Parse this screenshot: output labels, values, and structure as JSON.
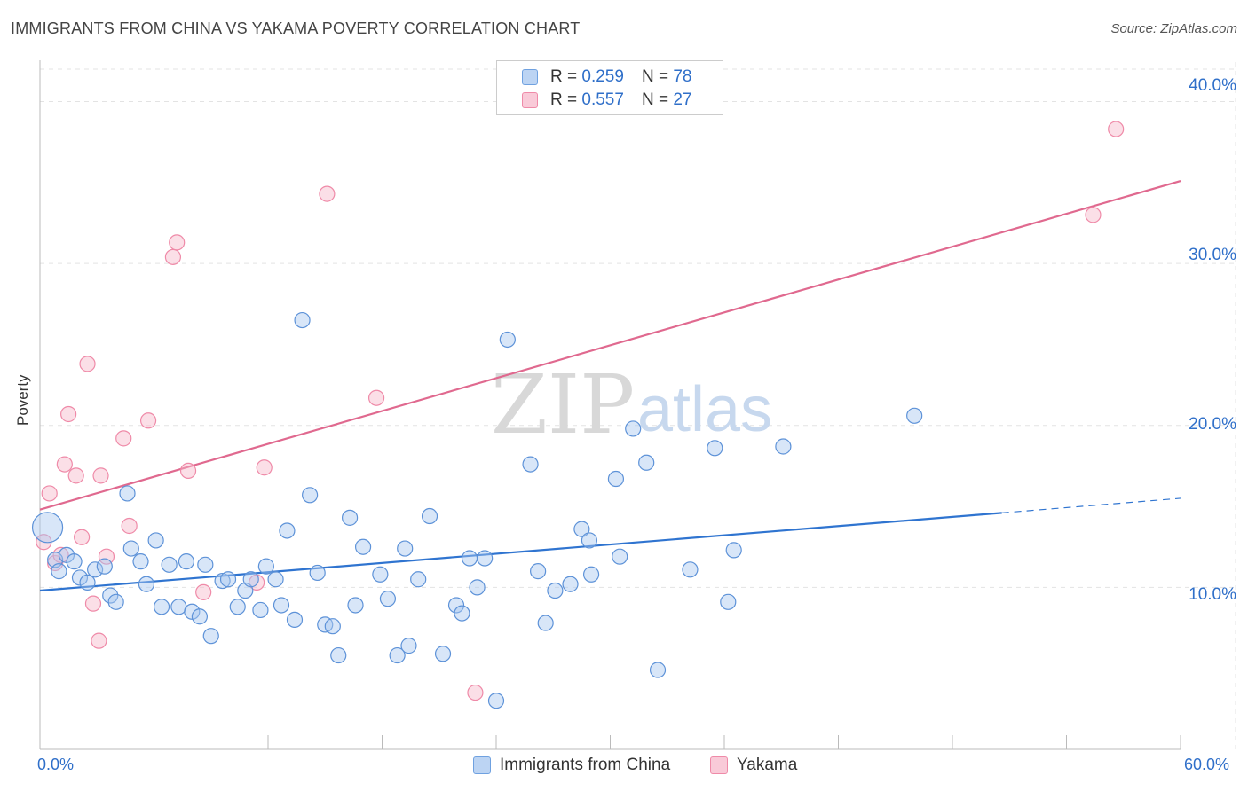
{
  "title": "IMMIGRANTS FROM CHINA VS YAKAMA POVERTY CORRELATION CHART",
  "source": "Source: ZipAtlas.com",
  "watermark": {
    "zip": "ZIP",
    "atlas": "atlas"
  },
  "legend_top": [
    {
      "r_label": "R =",
      "r_value": "0.259",
      "n_label": "N =",
      "n_value": "78"
    },
    {
      "r_label": "R =",
      "r_value": "0.557",
      "n_label": "N =",
      "n_value": "27"
    }
  ],
  "chart_data": {
    "type": "scatter",
    "title": "IMMIGRANTS FROM CHINA VS YAKAMA POVERTY CORRELATION CHART",
    "xlabel": "",
    "ylabel": "Poverty",
    "xlim": [
      0,
      60
    ],
    "ylim": [
      0,
      42
    ],
    "x_tick_labels": {
      "min": "0.0%",
      "max": "60.0%"
    },
    "y_ticks": [
      10,
      20,
      30,
      40
    ],
    "y_tick_labels": [
      "10.0%",
      "20.0%",
      "30.0%",
      "40.0%"
    ],
    "grid": true,
    "colors": {
      "china": "#6fa1e0",
      "yakama": "#ef8aa8",
      "china_line": "#2f74d0",
      "yakama_line": "#e0698f",
      "axis_text": "#2f6fc9"
    },
    "series": [
      {
        "name": "Immigrants from China",
        "r": 0.259,
        "n": 78,
        "trend": {
          "x0": 0,
          "y0": 9.8,
          "x1": 50.6,
          "y1": 14.6,
          "dash_to_x": 60,
          "dash_to_y": 15.5
        },
        "points": [
          {
            "x": 0.4,
            "y": 13.7,
            "big": true
          },
          {
            "x": 0.8,
            "y": 11.7
          },
          {
            "x": 1.0,
            "y": 11.0
          },
          {
            "x": 1.4,
            "y": 12.0
          },
          {
            "x": 1.8,
            "y": 11.6
          },
          {
            "x": 2.1,
            "y": 10.6
          },
          {
            "x": 2.5,
            "y": 10.3
          },
          {
            "x": 2.9,
            "y": 11.1
          },
          {
            "x": 3.4,
            "y": 11.3
          },
          {
            "x": 3.7,
            "y": 9.5
          },
          {
            "x": 4.0,
            "y": 9.1
          },
          {
            "x": 4.6,
            "y": 15.8
          },
          {
            "x": 4.8,
            "y": 12.4
          },
          {
            "x": 5.3,
            "y": 11.6
          },
          {
            "x": 5.6,
            "y": 10.2
          },
          {
            "x": 6.1,
            "y": 12.9
          },
          {
            "x": 6.4,
            "y": 8.8
          },
          {
            "x": 6.8,
            "y": 11.4
          },
          {
            "x": 7.3,
            "y": 8.8
          },
          {
            "x": 7.7,
            "y": 11.6
          },
          {
            "x": 8.0,
            "y": 8.5
          },
          {
            "x": 8.4,
            "y": 8.2
          },
          {
            "x": 8.7,
            "y": 11.4
          },
          {
            "x": 9.0,
            "y": 7.0
          },
          {
            "x": 9.6,
            "y": 10.4
          },
          {
            "x": 9.9,
            "y": 10.5
          },
          {
            "x": 10.4,
            "y": 8.8
          },
          {
            "x": 10.8,
            "y": 9.8
          },
          {
            "x": 11.1,
            "y": 10.5
          },
          {
            "x": 11.6,
            "y": 8.6
          },
          {
            "x": 11.9,
            "y": 11.3
          },
          {
            "x": 12.4,
            "y": 10.5
          },
          {
            "x": 12.7,
            "y": 8.9
          },
          {
            "x": 13.0,
            "y": 13.5
          },
          {
            "x": 13.4,
            "y": 8.0
          },
          {
            "x": 13.8,
            "y": 26.5
          },
          {
            "x": 14.2,
            "y": 15.7
          },
          {
            "x": 14.6,
            "y": 10.9
          },
          {
            "x": 15.0,
            "y": 7.7
          },
          {
            "x": 15.4,
            "y": 7.6
          },
          {
            "x": 15.7,
            "y": 5.8
          },
          {
            "x": 16.3,
            "y": 14.3
          },
          {
            "x": 16.6,
            "y": 8.9
          },
          {
            "x": 17.0,
            "y": 12.5
          },
          {
            "x": 17.9,
            "y": 10.8
          },
          {
            "x": 18.3,
            "y": 9.3
          },
          {
            "x": 18.8,
            "y": 5.8
          },
          {
            "x": 19.2,
            "y": 12.4
          },
          {
            "x": 19.4,
            "y": 6.4
          },
          {
            "x": 19.9,
            "y": 10.5
          },
          {
            "x": 20.5,
            "y": 14.4
          },
          {
            "x": 21.2,
            "y": 5.9
          },
          {
            "x": 21.9,
            "y": 8.9
          },
          {
            "x": 22.2,
            "y": 8.4
          },
          {
            "x": 22.6,
            "y": 11.8
          },
          {
            "x": 23.0,
            "y": 10.0
          },
          {
            "x": 23.4,
            "y": 11.8
          },
          {
            "x": 24.0,
            "y": 3.0
          },
          {
            "x": 24.6,
            "y": 25.3
          },
          {
            "x": 25.8,
            "y": 17.6
          },
          {
            "x": 26.2,
            "y": 11.0
          },
          {
            "x": 26.6,
            "y": 7.8
          },
          {
            "x": 27.1,
            "y": 9.8
          },
          {
            "x": 27.9,
            "y": 10.2
          },
          {
            "x": 28.5,
            "y": 13.6
          },
          {
            "x": 28.9,
            "y": 12.9
          },
          {
            "x": 29.0,
            "y": 10.8
          },
          {
            "x": 30.3,
            "y": 16.7
          },
          {
            "x": 30.5,
            "y": 11.9
          },
          {
            "x": 31.2,
            "y": 19.8
          },
          {
            "x": 31.9,
            "y": 17.7
          },
          {
            "x": 32.5,
            "y": 4.9
          },
          {
            "x": 34.2,
            "y": 11.1
          },
          {
            "x": 35.5,
            "y": 18.6
          },
          {
            "x": 36.2,
            "y": 9.1
          },
          {
            "x": 36.5,
            "y": 12.3
          },
          {
            "x": 39.1,
            "y": 18.7
          },
          {
            "x": 46.0,
            "y": 20.6
          }
        ]
      },
      {
        "name": "Yakama",
        "r": 0.557,
        "n": 27,
        "trend": {
          "x0": 0,
          "y0": 14.8,
          "x1": 60,
          "y1": 35.1
        },
        "points": [
          {
            "x": 0.2,
            "y": 12.8
          },
          {
            "x": 0.5,
            "y": 15.8
          },
          {
            "x": 0.8,
            "y": 11.5
          },
          {
            "x": 1.1,
            "y": 12.0
          },
          {
            "x": 1.3,
            "y": 17.6
          },
          {
            "x": 1.5,
            "y": 20.7
          },
          {
            "x": 1.9,
            "y": 16.9
          },
          {
            "x": 2.2,
            "y": 13.1
          },
          {
            "x": 2.5,
            "y": 23.8
          },
          {
            "x": 2.8,
            "y": 9.0
          },
          {
            "x": 3.1,
            "y": 6.7
          },
          {
            "x": 3.2,
            "y": 16.9
          },
          {
            "x": 3.5,
            "y": 11.9
          },
          {
            "x": 4.4,
            "y": 19.2
          },
          {
            "x": 4.7,
            "y": 13.8
          },
          {
            "x": 5.7,
            "y": 20.3
          },
          {
            "x": 7.0,
            "y": 30.4
          },
          {
            "x": 7.2,
            "y": 31.3
          },
          {
            "x": 7.8,
            "y": 17.2
          },
          {
            "x": 8.6,
            "y": 9.7
          },
          {
            "x": 11.4,
            "y": 10.3
          },
          {
            "x": 11.8,
            "y": 17.4
          },
          {
            "x": 15.1,
            "y": 34.3
          },
          {
            "x": 17.7,
            "y": 21.7
          },
          {
            "x": 22.9,
            "y": 3.5
          },
          {
            "x": 55.4,
            "y": 33.0
          },
          {
            "x": 56.6,
            "y": 38.3
          }
        ]
      }
    ]
  }
}
